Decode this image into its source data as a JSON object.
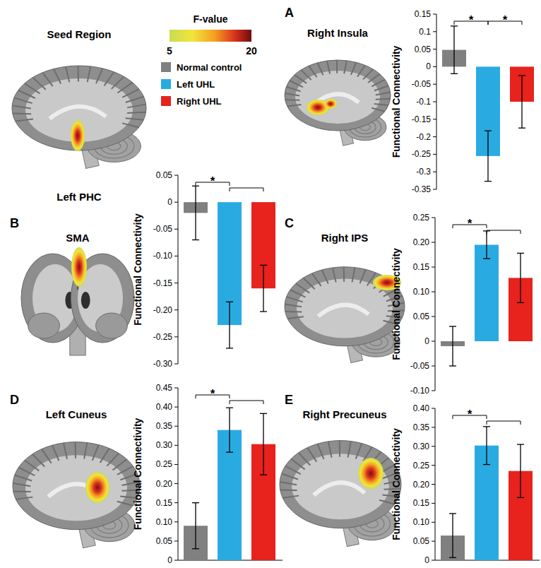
{
  "seed": {
    "title": "Seed Region",
    "label": "Left PHC"
  },
  "colorbar": {
    "title": "F-value",
    "range": [
      5,
      20
    ],
    "ticks": [
      5,
      20
    ]
  },
  "group_legend": [
    {
      "name": "Normal control",
      "color": "#808080"
    },
    {
      "name": "Left UHL",
      "color": "#29abe2"
    },
    {
      "name": "Right UHL",
      "color": "#e8221c"
    }
  ],
  "chart_data": [
    {
      "type": "bar",
      "panel": "A",
      "title": "Right Insula",
      "ylabel": "Functional Connectivity",
      "categories": [
        null,
        null,
        null
      ],
      "values": [
        0.048,
        -0.255,
        -0.1
      ],
      "errors": [
        0.068,
        0.072,
        0.075
      ],
      "colors": [
        "#808080",
        "#29abe2",
        "#e8221c"
      ],
      "ylim": [
        -0.35,
        0.15
      ],
      "yticks": [
        -0.35,
        -0.3,
        -0.25,
        -0.2,
        -0.15,
        -0.1,
        -0.05,
        0,
        0.05,
        0.1,
        0.15
      ],
      "annotations": [
        {
          "text": "*",
          "from": 0,
          "to": 1
        },
        {
          "text": "*",
          "from": 1,
          "to": 2
        }
      ]
    },
    {
      "type": "bar",
      "panel": "B",
      "title": "SMA",
      "ylabel": "Functional Connectivity",
      "categories": [
        null,
        null,
        null
      ],
      "values": [
        -0.02,
        -0.228,
        -0.16
      ],
      "errors": [
        0.05,
        0.043,
        0.043
      ],
      "colors": [
        "#808080",
        "#29abe2",
        "#e8221c"
      ],
      "ylim": [
        -0.3,
        0.05
      ],
      "yticks": [
        {
          "value": -0.3,
          "label": "-0.30"
        },
        -0.25,
        {
          "value": -0.2,
          "label": "-0.20"
        },
        -0.15,
        {
          "value": -0.1,
          "label": "-0.10"
        },
        -0.05,
        0,
        0.05
      ],
      "annotations": [
        {
          "text": "*",
          "from": 0,
          "to": 1
        },
        {
          "from": 1,
          "to": 2
        }
      ]
    },
    {
      "type": "bar",
      "panel": "C",
      "title": "Right IPS",
      "ylabel": "Functional Connectivity",
      "categories": [
        null,
        null,
        null
      ],
      "values": [
        -0.01,
        0.195,
        0.128
      ],
      "errors": [
        0.04,
        0.028,
        0.05
      ],
      "colors": [
        "#808080",
        "#29abe2",
        "#e8221c"
      ],
      "ylim": [
        -0.1,
        0.25
      ],
      "yticks": [
        {
          "value": -0.1,
          "label": "-0.10"
        },
        -0.05,
        0,
        0.05,
        {
          "value": 0.1,
          "label": "0.10"
        },
        0.15,
        {
          "value": 0.2,
          "label": "0.20"
        },
        0.25
      ],
      "annotations": [
        {
          "text": "*",
          "from": 0,
          "to": 1
        },
        {
          "from": 1,
          "to": 2
        }
      ]
    },
    {
      "type": "bar",
      "panel": "D",
      "title": "Left Cuneus",
      "ylabel": "Functional Connectivity",
      "categories": [
        null,
        null,
        null
      ],
      "values": [
        0.09,
        0.34,
        0.303
      ],
      "errors": [
        0.06,
        0.058,
        0.08
      ],
      "colors": [
        "#808080",
        "#29abe2",
        "#e8221c"
      ],
      "ylim": [
        0,
        0.45
      ],
      "yticks": [
        0,
        0.05,
        {
          "value": 0.1,
          "label": "0.10"
        },
        0.15,
        {
          "value": 0.2,
          "label": "0.20"
        },
        0.25,
        {
          "value": 0.3,
          "label": "0.30"
        },
        0.35,
        {
          "value": 0.4,
          "label": "0.40"
        },
        0.45
      ],
      "annotations": [
        {
          "text": "*",
          "from": 0,
          "to": 1
        },
        {
          "from": 1,
          "to": 2
        }
      ]
    },
    {
      "type": "bar",
      "panel": "E",
      "title": "Right Precuneus",
      "ylabel": "Functional Connectivity",
      "categories": [
        null,
        null,
        null
      ],
      "values": [
        0.065,
        0.302,
        0.235
      ],
      "errors": [
        0.058,
        0.05,
        0.07
      ],
      "colors": [
        "#808080",
        "#29abe2",
        "#e8221c"
      ],
      "ylim": [
        0,
        0.4
      ],
      "yticks": [
        0,
        0.05,
        {
          "value": 0.1,
          "label": "0.10"
        },
        0.15,
        {
          "value": 0.2,
          "label": "0.20"
        },
        0.25,
        {
          "value": 0.3,
          "label": "0.30"
        },
        0.35,
        {
          "value": 0.4,
          "label": "0.40"
        }
      ],
      "annotations": [
        {
          "text": "*",
          "from": 0,
          "to": 1
        },
        {
          "from": 1,
          "to": 2
        }
      ]
    }
  ]
}
